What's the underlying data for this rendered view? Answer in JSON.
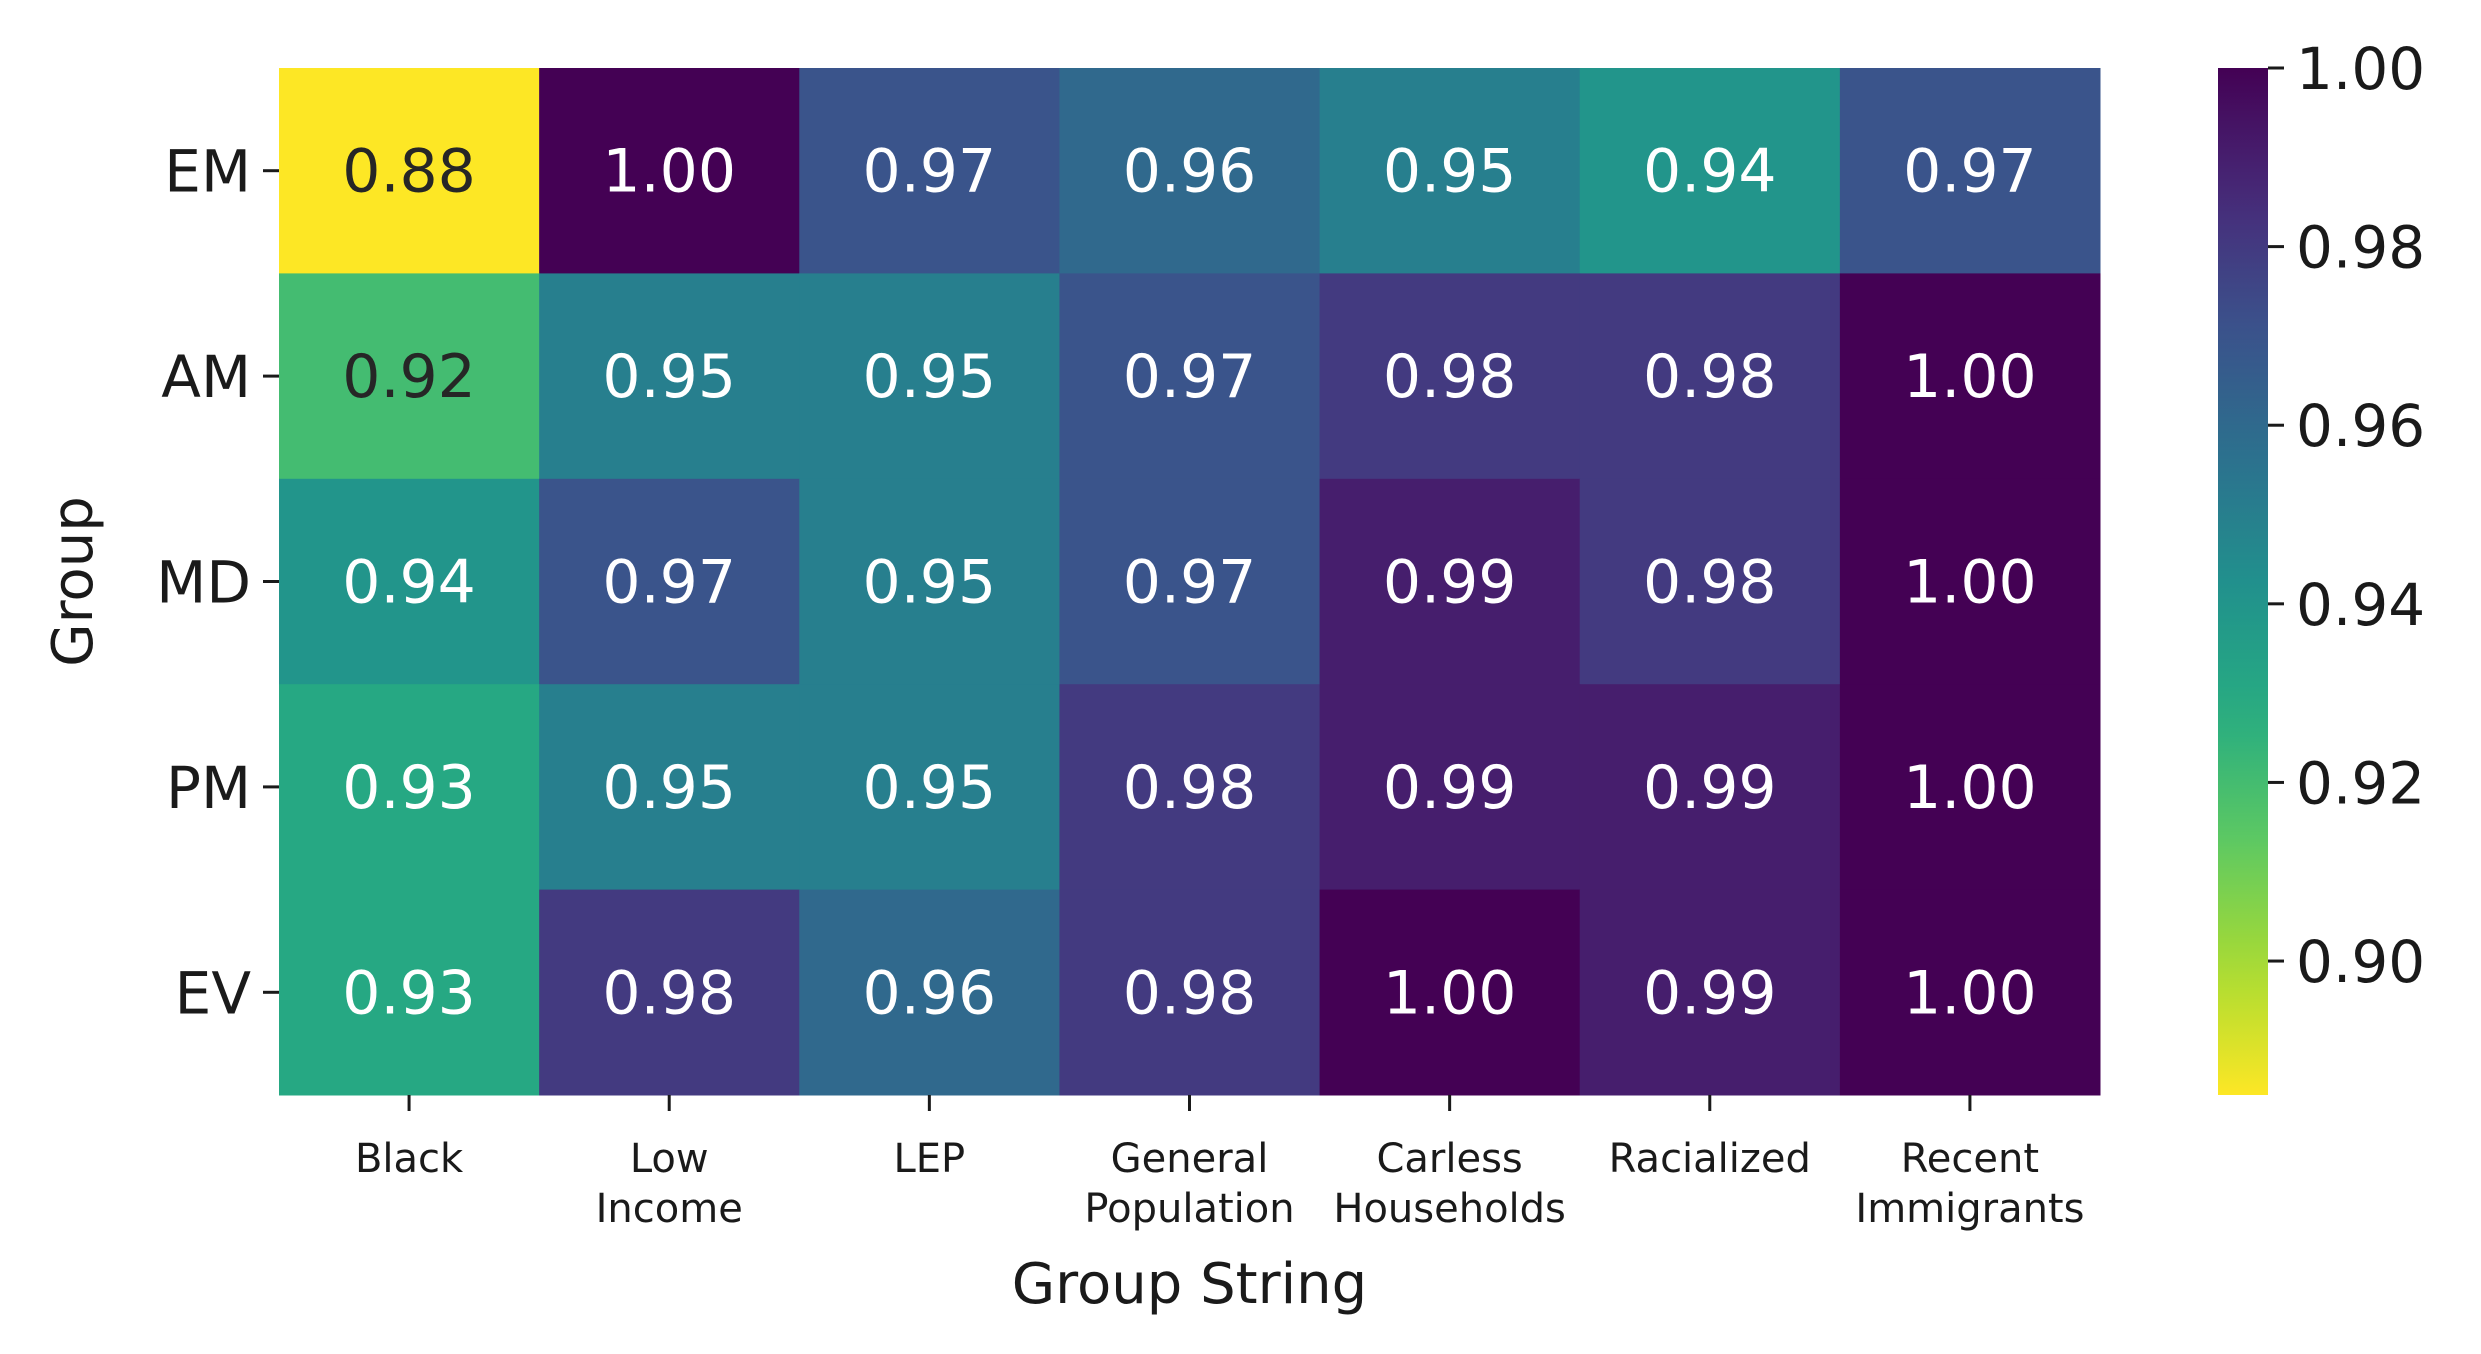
{
  "chart_data": {
    "type": "heatmap",
    "xlabel": "Group String",
    "ylabel": "Group",
    "x_categories": [
      [
        "Black"
      ],
      [
        "Low",
        "Income"
      ],
      [
        "LEP"
      ],
      [
        "General",
        "Population"
      ],
      [
        "Carless",
        "Households"
      ],
      [
        "Racialized"
      ],
      [
        "Recent",
        "Immigrants"
      ]
    ],
    "y_categories": [
      "EM",
      "AM",
      "MD",
      "PM",
      "EV"
    ],
    "values": [
      [
        0.88,
        1.0,
        0.97,
        0.96,
        0.95,
        0.94,
        0.97
      ],
      [
        0.92,
        0.95,
        0.95,
        0.97,
        0.98,
        0.98,
        1.0
      ],
      [
        0.94,
        0.97,
        0.95,
        0.97,
        0.99,
        0.98,
        1.0
      ],
      [
        0.93,
        0.95,
        0.95,
        0.98,
        0.99,
        0.99,
        1.0
      ],
      [
        0.93,
        0.98,
        0.96,
        0.98,
        1.0,
        0.99,
        1.0
      ]
    ],
    "value_format": "2 decimals",
    "colormap": "viridis_r",
    "colorbar": {
      "range": [
        0.885,
        1.0
      ],
      "ticks": [
        0.9,
        0.92,
        0.94,
        0.96,
        0.98,
        1.0
      ],
      "tick_labels": [
        "0.90",
        "0.92",
        "0.94",
        "0.96",
        "0.98",
        "1.00"
      ]
    }
  }
}
